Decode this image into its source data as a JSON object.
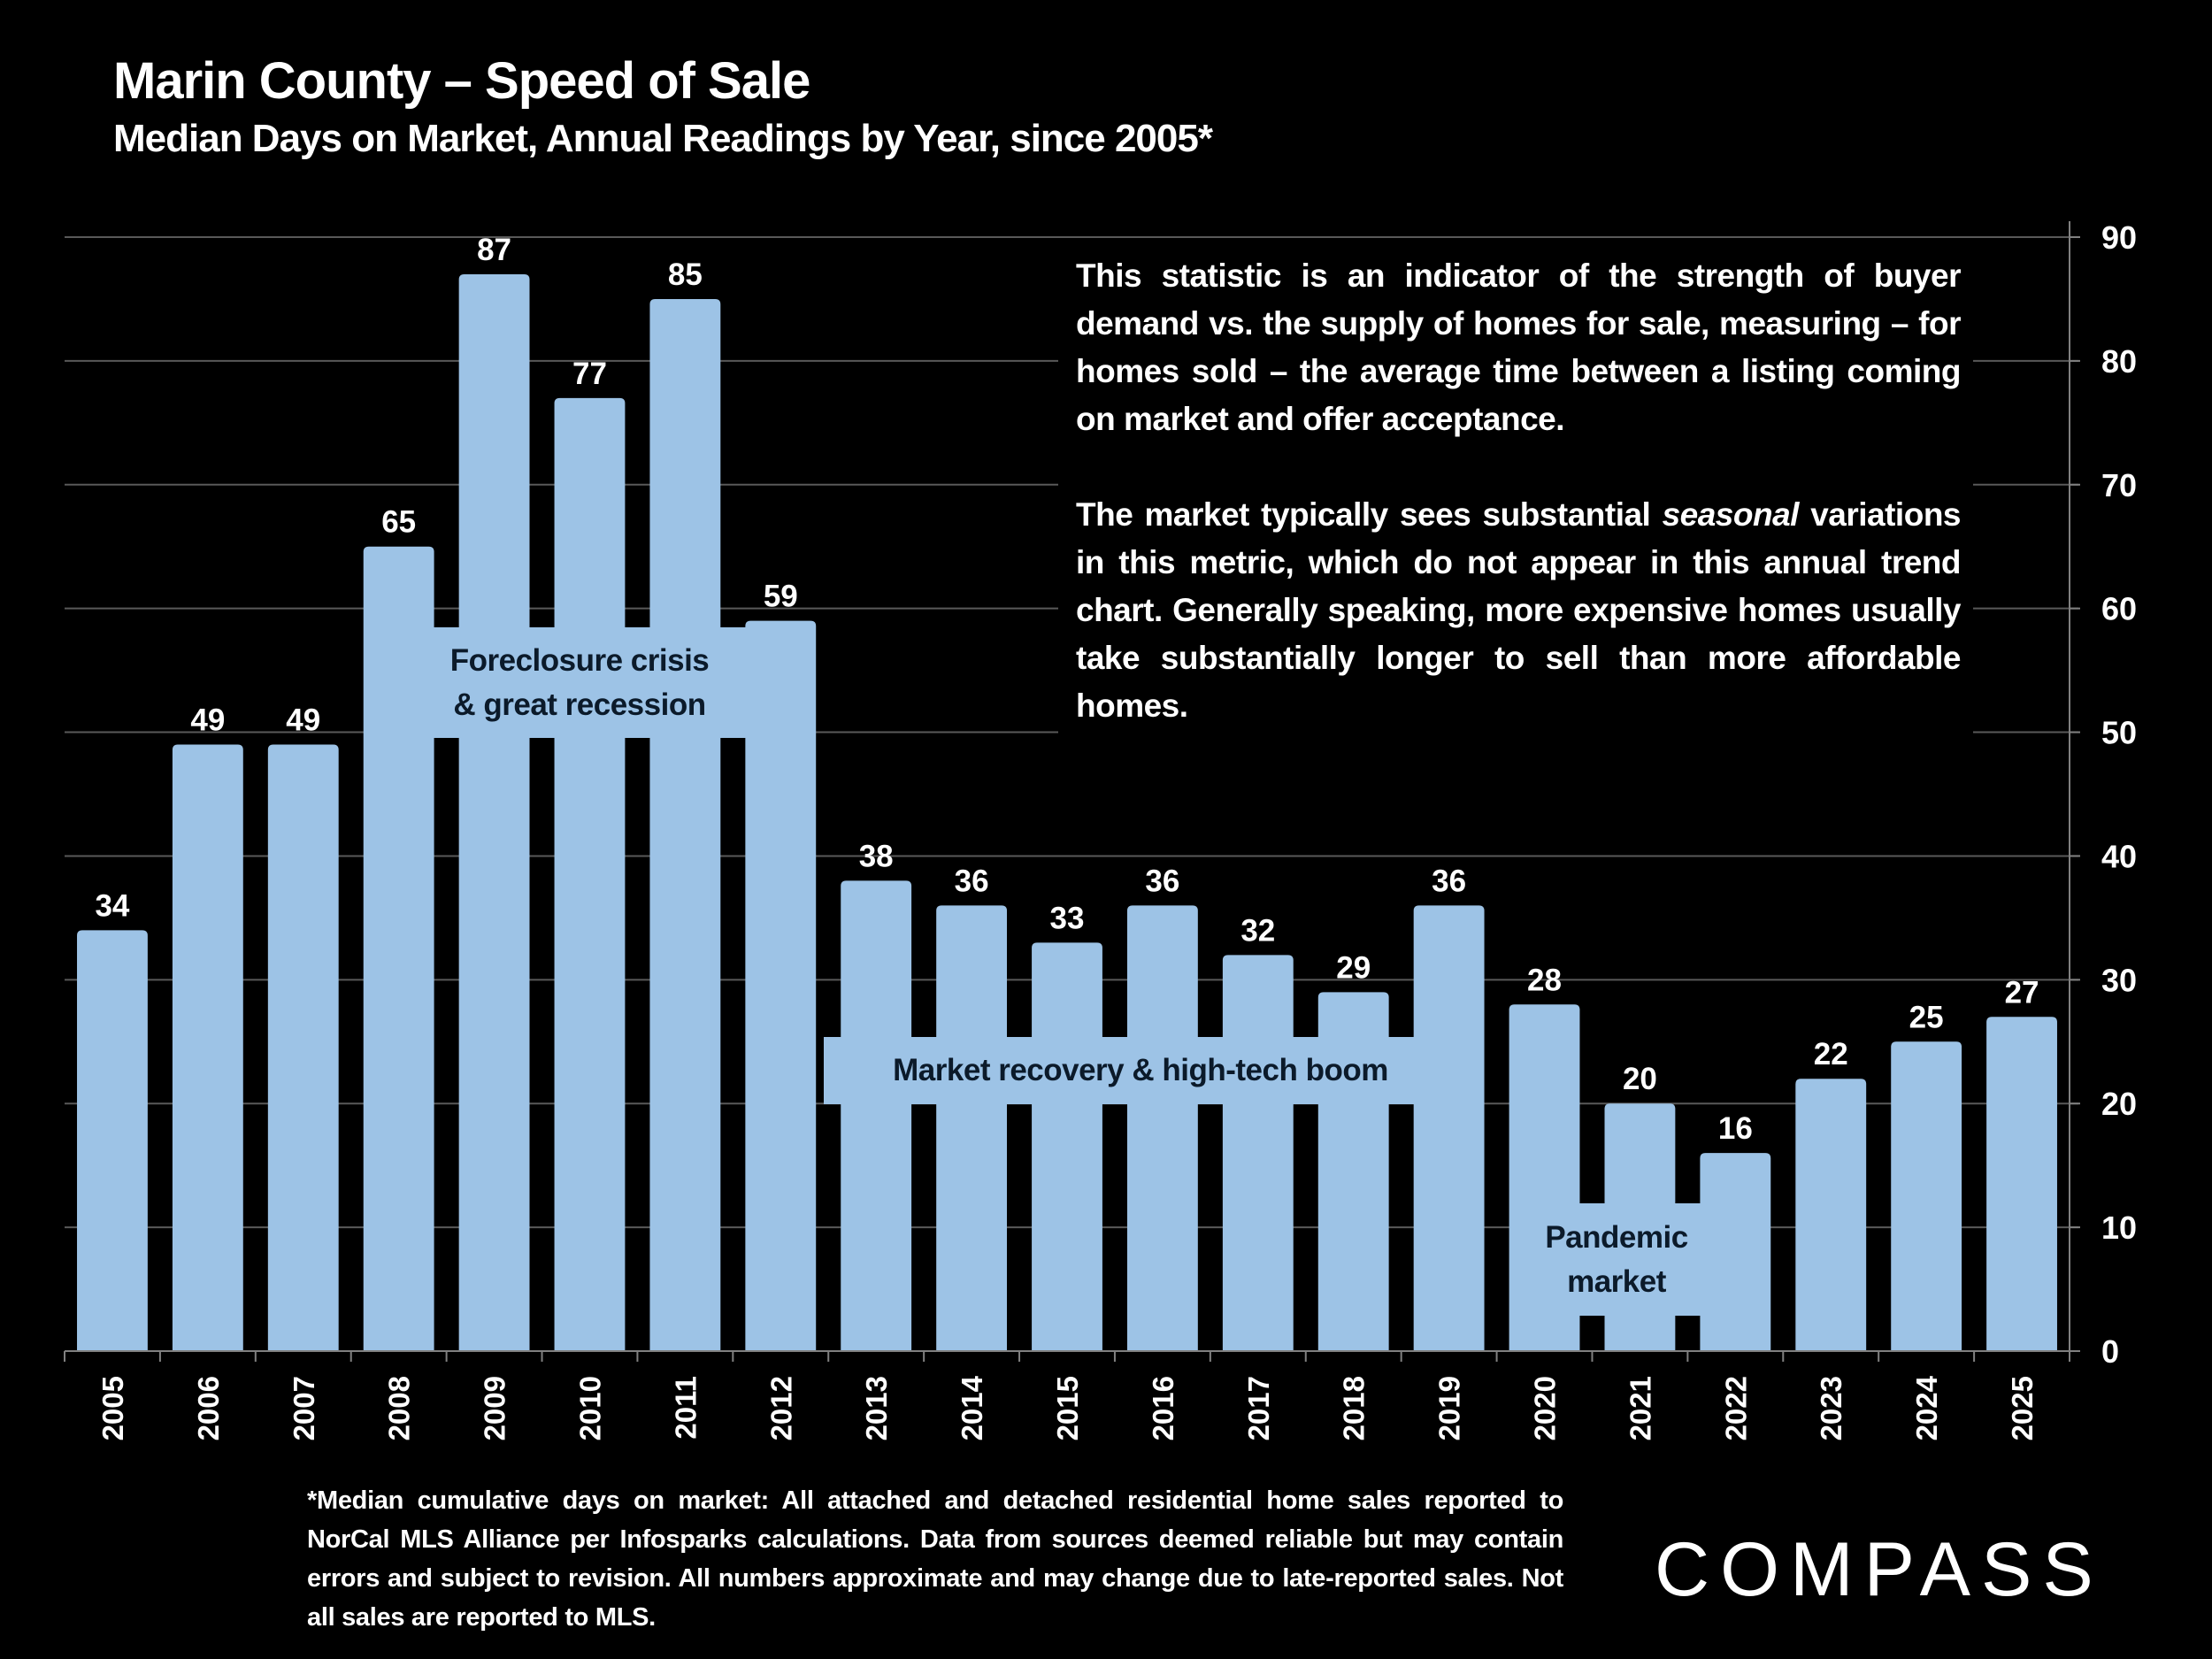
{
  "header": {
    "title": "Marin County – Speed of Sale",
    "subtitle": "Median Days on Market, Annual Readings by Year, since 2005*"
  },
  "chart_data": {
    "type": "bar",
    "title": "Marin County – Speed of Sale",
    "subtitle": "Median Days on Market, Annual Readings by Year, since 2005*",
    "categories": [
      "2005",
      "2006",
      "2007",
      "2008",
      "2009",
      "2010",
      "2011",
      "2012",
      "2013",
      "2014",
      "2015",
      "2016",
      "2017",
      "2018",
      "2019",
      "2020",
      "2021",
      "2022",
      "2023",
      "2024",
      "2025"
    ],
    "values": [
      34,
      49,
      49,
      65,
      87,
      77,
      85,
      59,
      38,
      36,
      33,
      36,
      32,
      29,
      36,
      28,
      20,
      16,
      22,
      25,
      27
    ],
    "ylim": [
      0,
      90
    ],
    "yticks": [
      0,
      10,
      20,
      30,
      40,
      50,
      60,
      70,
      80,
      90
    ],
    "y_axis_side": "right",
    "grid": true,
    "bar_color": "#9DC3E6",
    "annotations": [
      {
        "label": "Foreclosure crisis & great recession",
        "lines": [
          "Foreclosure crisis",
          "& great recession"
        ]
      },
      {
        "label": "Market recovery & high-tech boom",
        "lines": [
          "Market recovery & high-tech boom"
        ]
      },
      {
        "label": "Pandemic market",
        "lines": [
          "Pandemic",
          "market"
        ]
      }
    ]
  },
  "note": {
    "paragraph1": "This statistic is an indicator of the strength of buyer demand vs. the supply of homes for sale, measuring – for homes sold – the average time between a listing coming on market and offer acceptance.",
    "paragraph2_before": "The market typically sees substantial ",
    "paragraph2_italic": "seasonal",
    "paragraph2_after": " variations in this metric, which do not appear in this annual trend chart. Generally speaking, more expensive homes usually take substantially longer to sell than more affordable homes."
  },
  "footnote": "*Median cumulative days on market: All attached and detached residential home sales reported to NorCal MLS Alliance per Infosparks calculations. Data from sources deemed reliable but may contain errors and subject to revision. All numbers approximate and may change due to late-reported sales. Not all sales are reported to MLS.",
  "logo": {
    "text": "COMPASS"
  }
}
